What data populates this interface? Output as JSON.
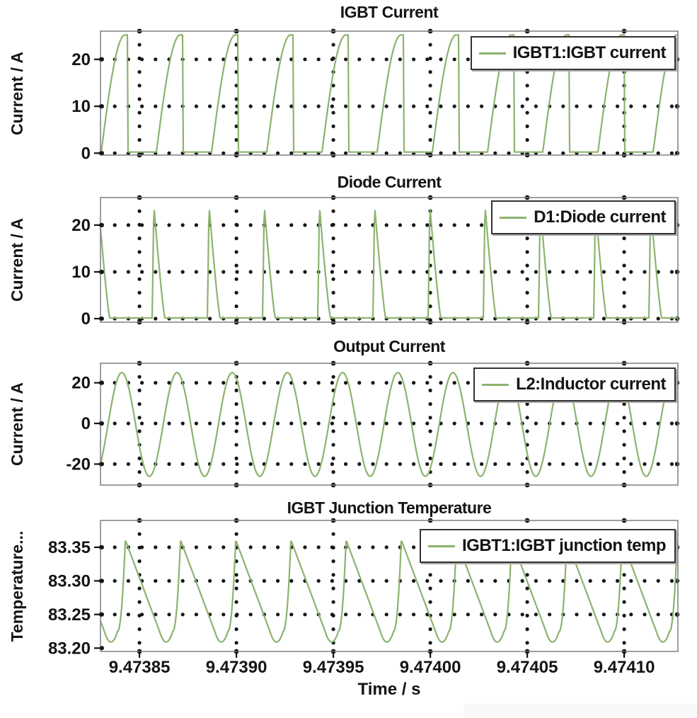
{
  "figure": {
    "background": "#ffffff",
    "line_color": "#8cb36e",
    "dot_color": "#141414",
    "frame_color": "#7f7f7f",
    "text_color": "#141414",
    "xlabel": "Time / s",
    "x_range": [
      9.4738299,
      9.4741277
    ],
    "x_ticks": [
      {
        "value": 9.47385,
        "label": "9.47385"
      },
      {
        "value": 9.4739,
        "label": "9.47390"
      },
      {
        "value": 9.47395,
        "label": "9.47395"
      },
      {
        "value": 9.474,
        "label": "9.47400"
      },
      {
        "value": 9.47405,
        "label": "9.47405"
      },
      {
        "value": 9.4741,
        "label": "9.47410"
      }
    ]
  },
  "chart_data": [
    {
      "type": "line",
      "title": "IGBT Current",
      "ylabel": "Current / A",
      "legend": "IGBT1:IGBT current",
      "legend_position": "top-right",
      "grid": "dotted",
      "ylim": [
        -0.4,
        26.0
      ],
      "y_ticks": [
        {
          "value": 0,
          "label": "0"
        },
        {
          "value": 10,
          "label": "10"
        },
        {
          "value": 20,
          "label": "20"
        }
      ],
      "grid_rows": [
        0,
        10,
        20
      ],
      "waveform": {
        "shape": "igbt_pulse",
        "description": "quarter-sine rising pulses with abrupt turn-off each switching cycle",
        "period_s": 2.8467e-05,
        "t_fall": 9.4738438,
        "duty": 0.475,
        "peak": 25.2,
        "base": 0.25
      }
    },
    {
      "type": "line",
      "title": "Diode Current",
      "ylabel": "Current / A",
      "legend": "D1:Diode current",
      "legend_position": "top-right",
      "grid": "dotted",
      "ylim": [
        -0.76,
        25.9
      ],
      "y_ticks": [
        {
          "value": 0,
          "label": "0"
        },
        {
          "value": 10,
          "label": "10"
        },
        {
          "value": 20,
          "label": "20"
        }
      ],
      "grid_rows": [
        0,
        10,
        20
      ],
      "waveform": {
        "shape": "diode_spike",
        "description": "narrow triangular spikes: vertical rise then steep decay to zero each cycle",
        "period_s": 2.8467e-05,
        "t_rise": 9.4738566,
        "rise_frac": 0.028,
        "fall_frac": 0.2,
        "peak": 24.3,
        "base": 0.15
      }
    },
    {
      "type": "line",
      "title": "Output Current",
      "ylabel": "Current / A",
      "legend": "L2:Inductor current",
      "legend_position": "top-right",
      "grid": "dotted",
      "ylim": [
        -30.3,
        29.6
      ],
      "y_ticks": [
        {
          "value": -20,
          "label": "-20"
        },
        {
          "value": 0,
          "label": "0"
        },
        {
          "value": 20,
          "label": "20"
        }
      ],
      "grid_rows": [
        -20,
        0,
        20
      ],
      "waveform": {
        "shape": "sine",
        "description": "continuous sinusoidal inductor current",
        "period_s": 2.8467e-05,
        "t_peak": 9.4738409,
        "amplitude": 25.5,
        "offset": -0.5
      }
    },
    {
      "type": "line",
      "title": "IGBT Junction Temperature",
      "ylabel": "Temperature...",
      "legend": "IGBT1:IGBT junction temp",
      "legend_position": "top-right",
      "grid": "dotted",
      "ylim": [
        83.195,
        83.39
      ],
      "y_ticks": [
        {
          "value": 83.2,
          "label": "83.20"
        },
        {
          "value": 83.25,
          "label": "83.25"
        },
        {
          "value": 83.3,
          "label": "83.30"
        },
        {
          "value": 83.35,
          "label": "83.35"
        }
      ],
      "grid_rows": [
        83.25,
        83.3,
        83.35
      ],
      "waveform": {
        "shape": "temp_sawtooth",
        "description": "thermal ripple: steep heating rise to peak, long cooling decay with rounded valley",
        "period_s": 2.8467e-05,
        "t_peak": 9.4738427,
        "peak": 83.361,
        "valley": 83.209,
        "shoulder": 83.225
      }
    }
  ]
}
